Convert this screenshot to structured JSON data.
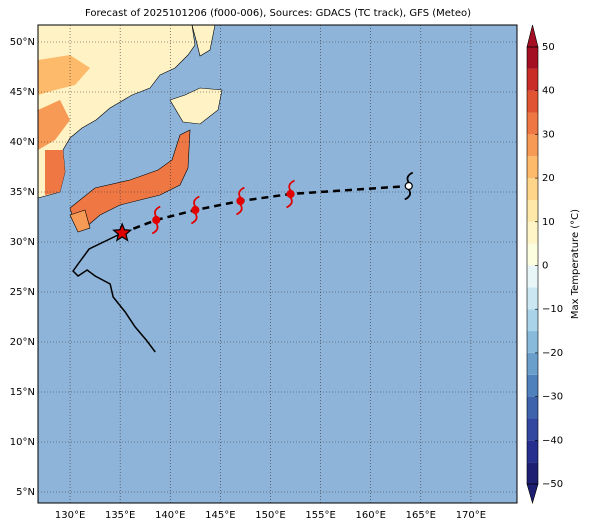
{
  "title": "Forecast of 2025101206 (f000-006), Sources: GDACS (TC track), GFS (Meteo)",
  "map": {
    "xlim": [
      126.8,
      174.6
    ],
    "ylim": [
      3.9,
      51.7
    ],
    "xticks": [
      {
        "value": 130,
        "label": "130°E"
      },
      {
        "value": 135,
        "label": "135°E"
      },
      {
        "value": 140,
        "label": "140°E"
      },
      {
        "value": 145,
        "label": "145°E"
      },
      {
        "value": 150,
        "label": "150°E"
      },
      {
        "value": 155,
        "label": "155°E"
      },
      {
        "value": 160,
        "label": "160°E"
      },
      {
        "value": 165,
        "label": "165°E"
      },
      {
        "value": 170,
        "label": "170°E"
      }
    ],
    "yticks": [
      {
        "value": 5,
        "label": "5°N"
      },
      {
        "value": 10,
        "label": "10°N"
      },
      {
        "value": 15,
        "label": "15°N"
      },
      {
        "value": 20,
        "label": "20°N"
      },
      {
        "value": 25,
        "label": "25°N"
      },
      {
        "value": 30,
        "label": "30°N"
      },
      {
        "value": 35,
        "label": "35°N"
      },
      {
        "value": 40,
        "label": "40°N"
      },
      {
        "value": 45,
        "label": "45°N"
      },
      {
        "value": 50,
        "label": "50°N"
      }
    ]
  },
  "track": {
    "past_lon": [
      138.5,
      137.6,
      136.5,
      135.5,
      134.3,
      134,
      132.5,
      131.7,
      130.8,
      130.3,
      130.8,
      131.9,
      135.2
    ],
    "past_lat": [
      19,
      20.2,
      21.5,
      23,
      24.5,
      25.8,
      26.6,
      27.2,
      26.6,
      27.1,
      27.8,
      29.3,
      30.9
    ],
    "forecast_lon": [
      135.2,
      138.6,
      142.5,
      147,
      152,
      163.8
    ],
    "forecast_lat": [
      30.9,
      32.2,
      33.2,
      34.1,
      34.8,
      35.6
    ]
  },
  "colorbar": {
    "label": "Max Temperature (°C)",
    "lim": [
      -50,
      50
    ],
    "ticks": [
      {
        "value": -50,
        "label": "−50"
      },
      {
        "value": -40,
        "label": "−40"
      },
      {
        "value": -30,
        "label": "−30"
      },
      {
        "value": -20,
        "label": "−20"
      },
      {
        "value": -10,
        "label": "−10"
      },
      0,
      10,
      20,
      30,
      40,
      50
    ],
    "bins": [
      -50,
      -45,
      -40,
      -35,
      -30,
      -25,
      -20,
      -15,
      -10,
      -5,
      0,
      5,
      10,
      15,
      20,
      25,
      30,
      35,
      40,
      45,
      50
    ],
    "colors": [
      "#1c1f72",
      "#262e8e",
      "#3248a0",
      "#3d63ad",
      "#4f82bd",
      "#6a9fcc",
      "#88bbdb",
      "#a9d3e8",
      "#cbe8f2",
      "#e8f6f8",
      "#fdfde0",
      "#fff5c6",
      "#ffe8a8",
      "#fed589",
      "#fdba6b",
      "#f79a55",
      "#ee7744",
      "#e05434",
      "#c92c26",
      "#a50f24"
    ]
  }
}
